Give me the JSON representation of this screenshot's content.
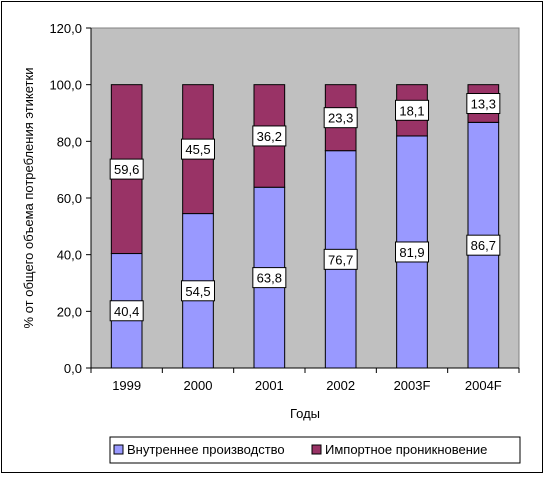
{
  "chart_data": {
    "type": "bar",
    "stacked": true,
    "categories": [
      "1999",
      "2000",
      "2001",
      "2002",
      "2003F",
      "2004F"
    ],
    "series": [
      {
        "name": "Внутреннее производство",
        "values": [
          40.4,
          54.5,
          63.8,
          76.7,
          81.9,
          86.7
        ],
        "color": "#9999ff"
      },
      {
        "name": "Импортное проникновение",
        "values": [
          59.6,
          45.5,
          36.2,
          23.3,
          18.1,
          13.3
        ],
        "color": "#993366"
      }
    ],
    "value_labels": {
      "domestic": [
        "40,4",
        "54,5",
        "63,8",
        "76,7",
        "81,9",
        "86,7"
      ],
      "import": [
        "59,6",
        "45,5",
        "36,2",
        "23,3",
        "18,1",
        "13,3"
      ]
    },
    "xlabel": "Годы",
    "ylabel": "% от общего объема потребления этикетки",
    "ylim": [
      0,
      120
    ],
    "yticks": [
      0,
      20,
      40,
      60,
      80,
      100,
      120
    ],
    "ytick_labels": [
      "0,0",
      "20,0",
      "40,0",
      "60,0",
      "80,0",
      "100,0",
      "120,0"
    ],
    "legend_position": "bottom",
    "grid": false
  }
}
